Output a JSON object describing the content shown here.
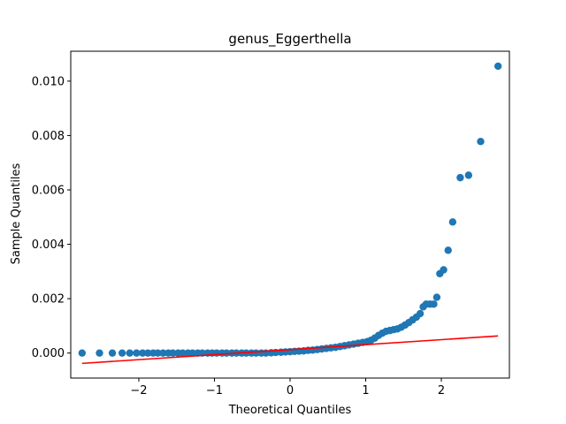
{
  "chart_data": {
    "type": "scatter",
    "title": "genus_Eggerthella",
    "xlabel": "Theoretical Quantiles",
    "ylabel": "Sample Quantiles",
    "xlim": [
      -2.9,
      2.9
    ],
    "ylim": [
      -0.00092,
      0.0111
    ],
    "xticks": [
      -2,
      -1,
      0,
      1,
      2
    ],
    "xtick_labels": [
      "−2",
      "−1",
      "0",
      "1",
      "2"
    ],
    "yticks": [
      0.0,
      0.002,
      0.004,
      0.006,
      0.008,
      0.01
    ],
    "ytick_labels": [
      "0.000",
      "0.002",
      "0.004",
      "0.006",
      "0.008",
      "0.010"
    ],
    "grid": false,
    "point_color": "#1f77b4",
    "line_color": "#ff0000",
    "reference_line": {
      "x": [
        -2.75,
        2.75
      ],
      "y": [
        -0.00038,
        0.00063
      ]
    },
    "points": [
      {
        "x": -2.75,
        "y": 0.0
      },
      {
        "x": -2.52,
        "y": 0.0
      },
      {
        "x": -2.35,
        "y": 0.0
      },
      {
        "x": -2.22,
        "y": 0.0
      },
      {
        "x": -2.12,
        "y": 0.0
      },
      {
        "x": -2.03,
        "y": 0.0
      },
      {
        "x": -1.95,
        "y": 0.0
      },
      {
        "x": -1.88,
        "y": 0.0
      },
      {
        "x": -1.81,
        "y": 0.0
      },
      {
        "x": -1.75,
        "y": 0.0
      },
      {
        "x": -1.68,
        "y": 0.0
      },
      {
        "x": -1.61,
        "y": 0.0
      },
      {
        "x": -1.55,
        "y": 0.0
      },
      {
        "x": -1.48,
        "y": 0.0
      },
      {
        "x": -1.42,
        "y": 0.0
      },
      {
        "x": -1.35,
        "y": 0.0
      },
      {
        "x": -1.29,
        "y": 0.0
      },
      {
        "x": -1.22,
        "y": 0.0
      },
      {
        "x": -1.16,
        "y": 0.0
      },
      {
        "x": -1.09,
        "y": 0.0
      },
      {
        "x": -1.03,
        "y": 0.0
      },
      {
        "x": -0.97,
        "y": 0.0
      },
      {
        "x": -0.9,
        "y": 0.0
      },
      {
        "x": -0.84,
        "y": 0.0
      },
      {
        "x": -0.77,
        "y": 0.0
      },
      {
        "x": -0.71,
        "y": 0.0
      },
      {
        "x": -0.64,
        "y": 0.0
      },
      {
        "x": -0.58,
        "y": 0.0
      },
      {
        "x": -0.51,
        "y": 0.0
      },
      {
        "x": -0.45,
        "y": 0.0
      },
      {
        "x": -0.38,
        "y": 0.0
      },
      {
        "x": -0.32,
        "y": 0.0
      },
      {
        "x": -0.25,
        "y": 1e-05
      },
      {
        "x": -0.19,
        "y": 2e-05
      },
      {
        "x": -0.12,
        "y": 3e-05
      },
      {
        "x": -0.06,
        "y": 4e-05
      },
      {
        "x": 0.0,
        "y": 5e-05
      },
      {
        "x": 0.06,
        "y": 6e-05
      },
      {
        "x": 0.12,
        "y": 7e-05
      },
      {
        "x": 0.18,
        "y": 8e-05
      },
      {
        "x": 0.24,
        "y": 0.0001
      },
      {
        "x": 0.3,
        "y": 0.00011
      },
      {
        "x": 0.36,
        "y": 0.00013
      },
      {
        "x": 0.42,
        "y": 0.00015
      },
      {
        "x": 0.48,
        "y": 0.00017
      },
      {
        "x": 0.54,
        "y": 0.00019
      },
      {
        "x": 0.6,
        "y": 0.00021
      },
      {
        "x": 0.66,
        "y": 0.00024
      },
      {
        "x": 0.72,
        "y": 0.00027
      },
      {
        "x": 0.78,
        "y": 0.0003
      },
      {
        "x": 0.84,
        "y": 0.00033
      },
      {
        "x": 0.9,
        "y": 0.00036
      },
      {
        "x": 0.96,
        "y": 0.00039
      },
      {
        "x": 1.02,
        "y": 0.00042
      },
      {
        "x": 1.07,
        "y": 0.00047
      },
      {
        "x": 1.12,
        "y": 0.00055
      },
      {
        "x": 1.17,
        "y": 0.00065
      },
      {
        "x": 1.22,
        "y": 0.00073
      },
      {
        "x": 1.27,
        "y": 0.0008
      },
      {
        "x": 1.32,
        "y": 0.00083
      },
      {
        "x": 1.37,
        "y": 0.00086
      },
      {
        "x": 1.42,
        "y": 0.00089
      },
      {
        "x": 1.47,
        "y": 0.00095
      },
      {
        "x": 1.52,
        "y": 0.00103
      },
      {
        "x": 1.57,
        "y": 0.00112
      },
      {
        "x": 1.62,
        "y": 0.00122
      },
      {
        "x": 1.67,
        "y": 0.00132
      },
      {
        "x": 1.72,
        "y": 0.00145
      },
      {
        "x": 1.76,
        "y": 0.0017
      },
      {
        "x": 1.8,
        "y": 0.0018
      },
      {
        "x": 1.85,
        "y": 0.0018
      },
      {
        "x": 1.9,
        "y": 0.0018
      },
      {
        "x": 1.94,
        "y": 0.00205
      },
      {
        "x": 1.98,
        "y": 0.00292
      },
      {
        "x": 2.03,
        "y": 0.00306
      },
      {
        "x": 2.09,
        "y": 0.00378
      },
      {
        "x": 2.15,
        "y": 0.00482
      },
      {
        "x": 2.25,
        "y": 0.00645
      },
      {
        "x": 2.36,
        "y": 0.00654
      },
      {
        "x": 2.52,
        "y": 0.00778
      },
      {
        "x": 2.75,
        "y": 0.01055
      }
    ]
  }
}
